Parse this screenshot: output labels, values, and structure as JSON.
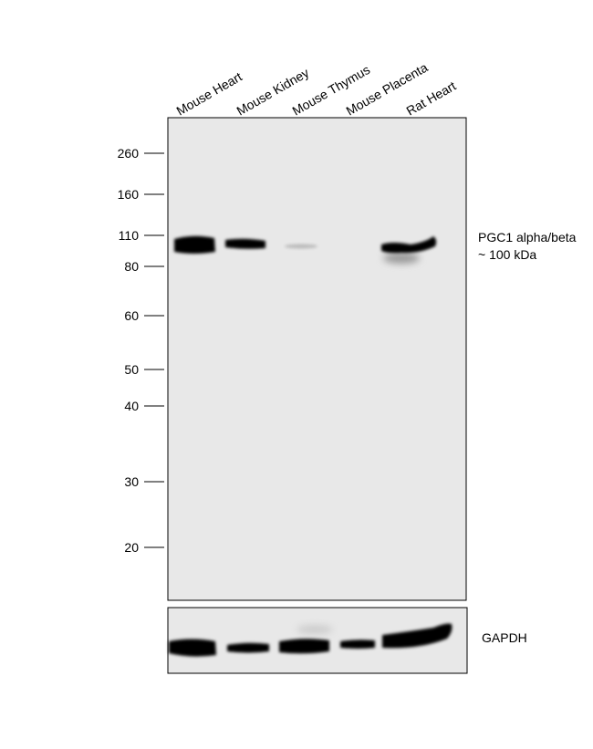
{
  "lanes": [
    "Mouse Heart",
    "Mouse Kidney",
    "Mouse Thymus",
    "Mouse Placenta",
    "Rat Heart"
  ],
  "markers": [
    "260",
    "160",
    "110",
    "80",
    "60",
    "50",
    "40",
    "30",
    "20"
  ],
  "target": {
    "name": "PGC1 alpha/beta",
    "size": "~ 100 kDa"
  },
  "loading_control": "GAPDH"
}
